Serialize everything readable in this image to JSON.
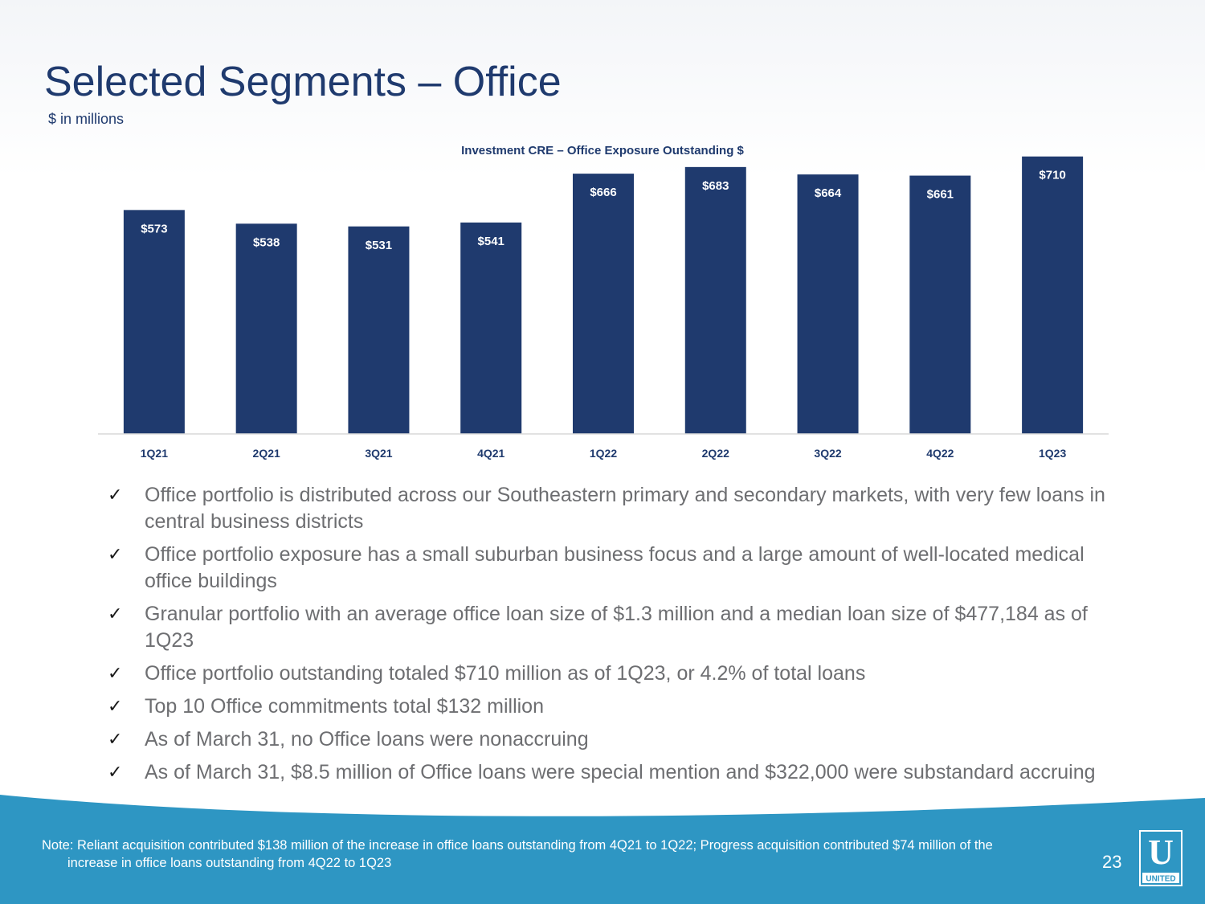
{
  "header": {
    "title": "Selected Segments – Office",
    "subtitle": "$ in millions"
  },
  "chart_data": {
    "type": "bar",
    "title": "Investment CRE – Office Exposure Outstanding $",
    "categories": [
      "1Q21",
      "2Q21",
      "3Q21",
      "4Q21",
      "1Q22",
      "2Q22",
      "3Q22",
      "4Q22",
      "1Q23"
    ],
    "values": [
      573,
      538,
      531,
      541,
      666,
      683,
      664,
      661,
      710
    ],
    "value_labels": [
      "$573",
      "$538",
      "$531",
      "$541",
      "$666",
      "$683",
      "$664",
      "$661",
      "$710"
    ],
    "ylim": [
      0,
      730
    ],
    "xlabel": "",
    "ylabel": "",
    "grid": false,
    "colors": {
      "bar": "#1f3a6e",
      "label": "#ffffff",
      "axis": "#d9d9d9"
    }
  },
  "bullets": [
    "Office portfolio is distributed across our Southeastern primary and secondary markets, with very few loans in central business districts",
    "Office portfolio exposure has a small suburban business focus and a large amount of well-located medical office buildings",
    "Granular portfolio with an average office loan size of $1.3 million and a median loan size of $477,184 as of 1Q23",
    "Office portfolio outstanding totaled $710 million as of 1Q23, or 4.2% of total loans",
    "Top 10 Office commitments total $132 million",
    "As of March 31, no Office loans were nonaccruing",
    "As of March 31, $8.5 million of Office loans were special mention and $322,000 were substandard accruing"
  ],
  "check_glyph": "✓",
  "footer": {
    "note": "Note: Reliant acquisition contributed $138 million of the increase in office loans outstanding from 4Q21 to 1Q22; Progress acquisition contributed $74 million of the increase in office loans outstanding from 4Q22 to 1Q23",
    "page_number": "23",
    "logo_letter": "U",
    "logo_text": "UNITED",
    "color": "#2e96c3"
  }
}
